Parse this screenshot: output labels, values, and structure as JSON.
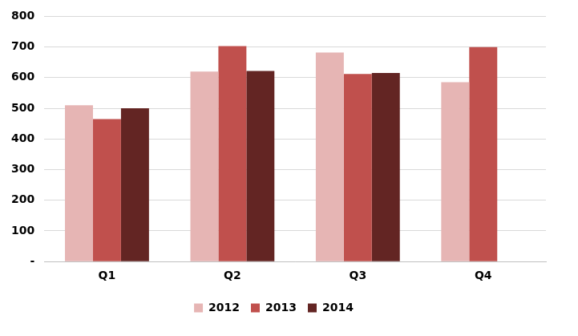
{
  "chart_data": {
    "type": "bar",
    "categories": [
      "Q1",
      "Q2",
      "Q3",
      "Q4"
    ],
    "series": [
      {
        "name": "2012",
        "color": "#e6b5b4",
        "values": [
          510,
          620,
          682,
          585
        ]
      },
      {
        "name": "2013",
        "color": "#c0504d",
        "values": [
          465,
          703,
          612,
          700
        ]
      },
      {
        "name": "2014",
        "color": "#632523",
        "values": [
          500,
          622,
          615,
          null
        ]
      }
    ],
    "ylim": [
      0,
      800
    ],
    "yticks": [
      {
        "value": 0,
        "label": "-"
      },
      100,
      200,
      300,
      400,
      500,
      600,
      700,
      800
    ],
    "grid": true,
    "legend": "bottom"
  }
}
